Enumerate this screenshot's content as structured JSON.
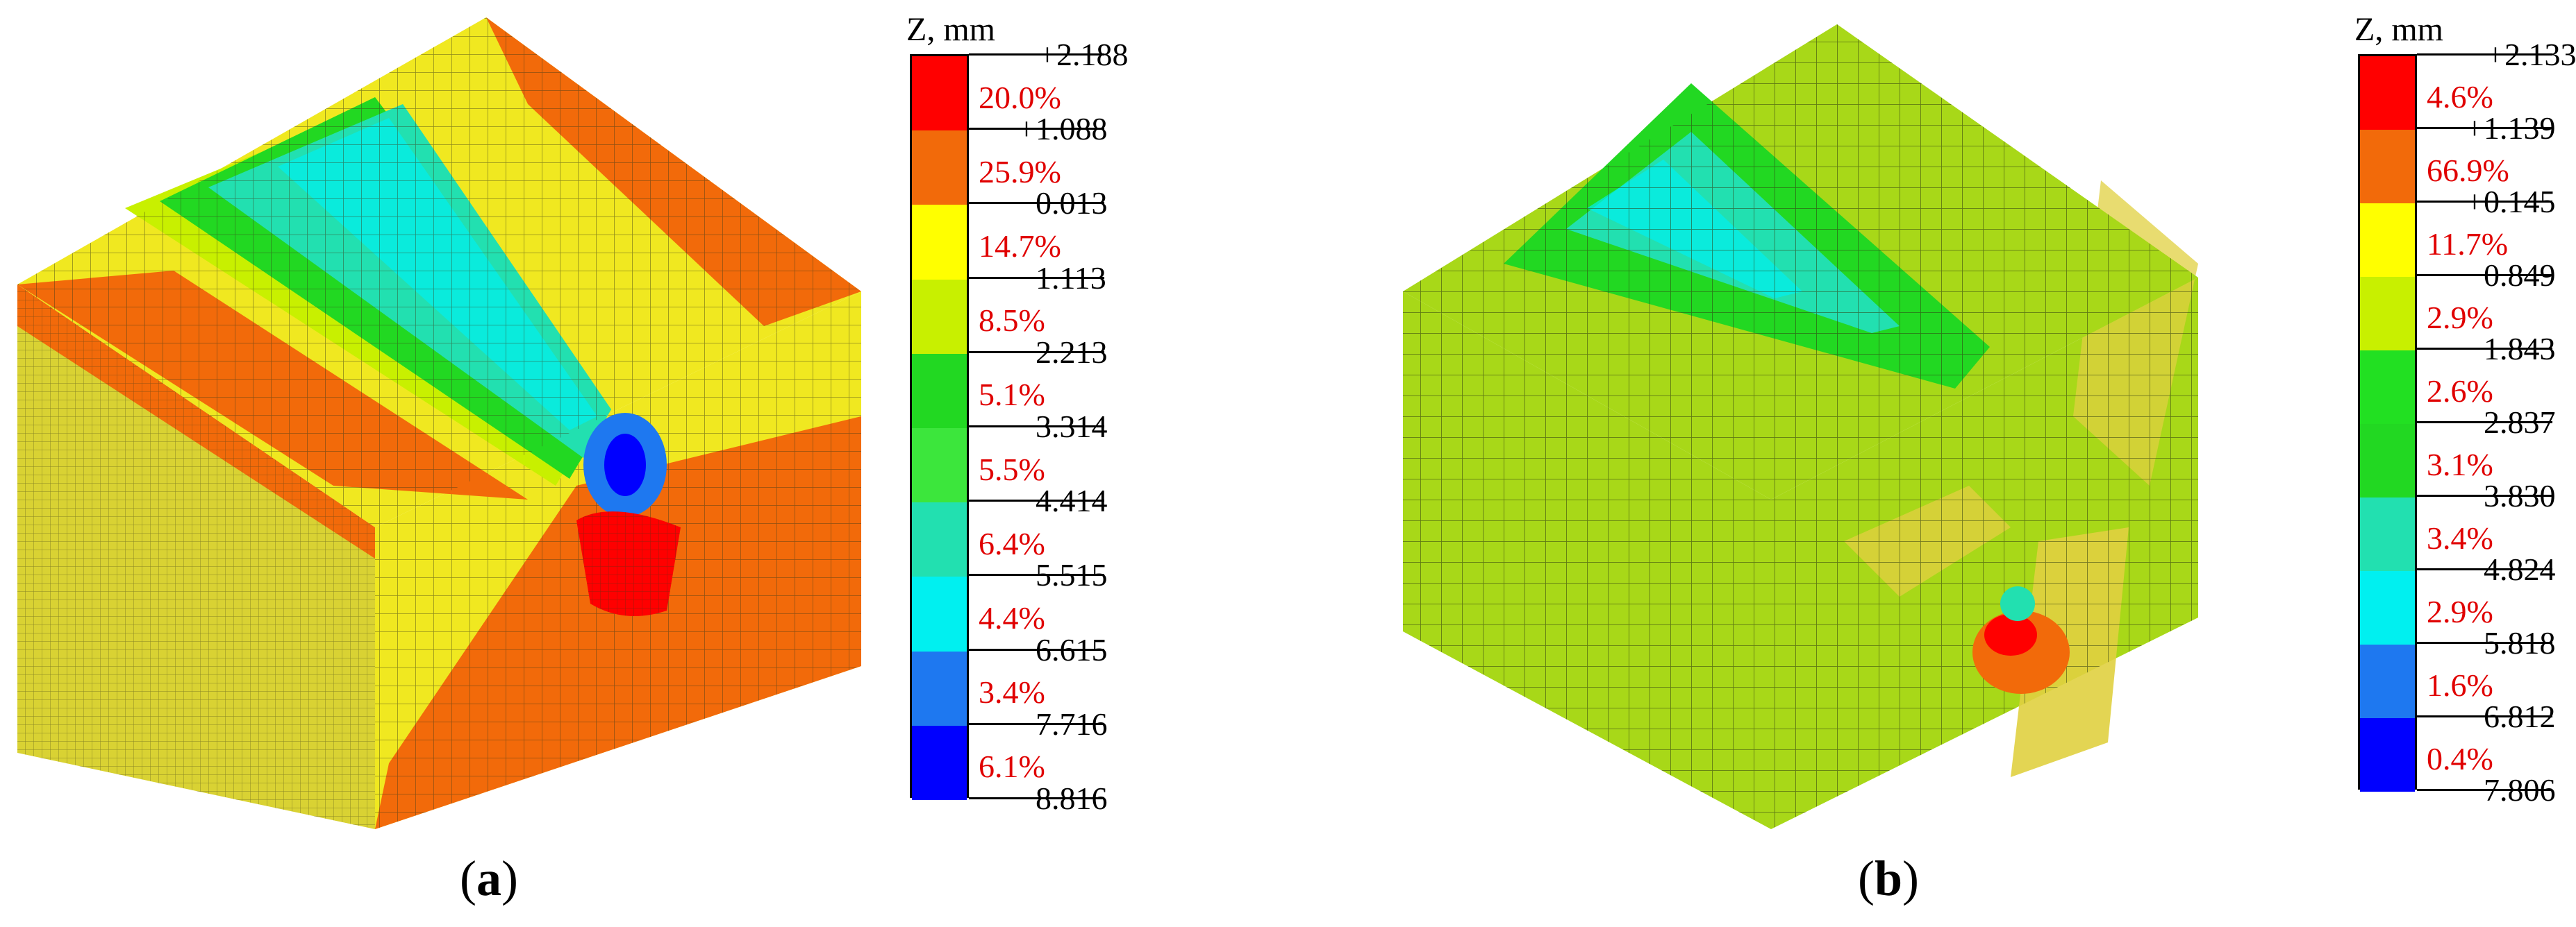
{
  "panels": [
    {
      "id": "a",
      "caption_open": "(",
      "caption_letter": "a",
      "caption_close": ")",
      "legend": {
        "title": "Z, mm",
        "ticks": [
          "+2.188",
          "+1.088",
          "−0.013",
          "−1.113",
          "−2.213",
          "−3.314",
          "−4.414",
          "−5.515",
          "−6.615",
          "−7.716",
          "−8.816"
        ],
        "bands": [
          {
            "percent": "20.0%",
            "color": "#ff0000"
          },
          {
            "percent": "25.9%",
            "color": "#f26a0a"
          },
          {
            "percent": "14.7%",
            "color": "#ffff00"
          },
          {
            "percent": "8.5%",
            "color": "#c8f000"
          },
          {
            "percent": "5.1%",
            "color": "#22d822"
          },
          {
            "percent": "5.5%",
            "color": "#3ce63c"
          },
          {
            "percent": "6.4%",
            "color": "#22e0b0"
          },
          {
            "percent": "4.4%",
            "color": "#00f0f0"
          },
          {
            "percent": "3.4%",
            "color": "#1e78f0"
          },
          {
            "percent": "6.1%",
            "color": "#0000ff"
          }
        ]
      }
    },
    {
      "id": "b",
      "caption_open": "(",
      "caption_letter": "b",
      "caption_close": ")",
      "legend": {
        "title": "Z, mm",
        "ticks": [
          "+2.133",
          "+1.139",
          "+0.145",
          "−0.849",
          "−1.843",
          "−2.837",
          "−3.830",
          "−4.824",
          "−5.818",
          "−6.812",
          "−7.806"
        ],
        "bands": [
          {
            "percent": "4.6%",
            "color": "#ff0000"
          },
          {
            "percent": "66.9%",
            "color": "#f26a0a"
          },
          {
            "percent": "11.7%",
            "color": "#ffff00"
          },
          {
            "percent": "2.9%",
            "color": "#c8f000"
          },
          {
            "percent": "2.6%",
            "color": "#22e022"
          },
          {
            "percent": "3.1%",
            "color": "#22d822"
          },
          {
            "percent": "3.4%",
            "color": "#22e0b0"
          },
          {
            "percent": "2.9%",
            "color": "#00f0f0"
          },
          {
            "percent": "1.6%",
            "color": "#1e78f0"
          },
          {
            "percent": "0.4%",
            "color": "#0000ff"
          }
        ]
      }
    }
  ]
}
